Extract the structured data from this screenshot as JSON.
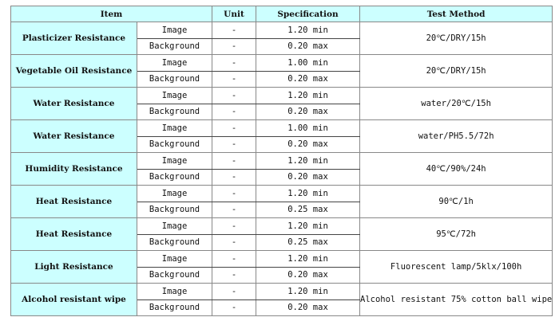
{
  "headers": {
    "item": "Item",
    "unit": "Unit",
    "specification": "Specification",
    "test_method": "Test Method"
  },
  "rows": [
    {
      "item": "Plasticizer Resistance",
      "image_label": "Image",
      "image_unit": "-",
      "image_spec": "1.20 min",
      "bg_label": "Background",
      "bg_unit": "-",
      "bg_spec": "0.20 max",
      "method": "20℃/DRY/15h"
    },
    {
      "item": "Vegetable Oil Resistance",
      "image_label": "Image",
      "image_unit": "-",
      "image_spec": "1.00 min",
      "bg_label": "Background",
      "bg_unit": "-",
      "bg_spec": "0.20 max",
      "method": "20℃/DRY/15h"
    },
    {
      "item": "Water Resistance",
      "image_label": "Image",
      "image_unit": "-",
      "image_spec": "1.20 min",
      "bg_label": "Background",
      "bg_unit": "-",
      "bg_spec": "0.20 max",
      "method": "water/20℃/15h"
    },
    {
      "item": "Water Resistance",
      "image_label": "Image",
      "image_unit": "-",
      "image_spec": "1.00 min",
      "bg_label": "Background",
      "bg_unit": "-",
      "bg_spec": "0.20 max",
      "method": "water/PH5.5/72h"
    },
    {
      "item": "Humidity Resistance",
      "image_label": "Image",
      "image_unit": "-",
      "image_spec": "1.20 min",
      "bg_label": "Background",
      "bg_unit": "-",
      "bg_spec": "0.20 max",
      "method": "40℃/90%/24h"
    },
    {
      "item": "Heat Resistance",
      "image_label": "Image",
      "image_unit": "-",
      "image_spec": "1.20 min",
      "bg_label": "Background",
      "bg_unit": "-",
      "bg_spec": "0.25 max",
      "method": "90℃/1h"
    },
    {
      "item": "Heat Resistance",
      "image_label": "Image",
      "image_unit": "-",
      "image_spec": "1.20 min",
      "bg_label": "Background",
      "bg_unit": "-",
      "bg_spec": "0.25 max",
      "method": "95℃/72h"
    },
    {
      "item": "Light Resistance",
      "image_label": "Image",
      "image_unit": "-",
      "image_spec": "1.20 min",
      "bg_label": "Background",
      "bg_unit": "-",
      "bg_spec": "0.20 max",
      "method": "Fluorescent lamp/5klx/100h"
    },
    {
      "item": "Alcohol resistant wipe",
      "image_label": "Image",
      "image_unit": "-",
      "image_spec": "1.20 min",
      "bg_label": "Background",
      "bg_unit": "-",
      "bg_spec": "0.20 max",
      "method": "Alcohol resistant 75% cotton ball wipe"
    }
  ]
}
